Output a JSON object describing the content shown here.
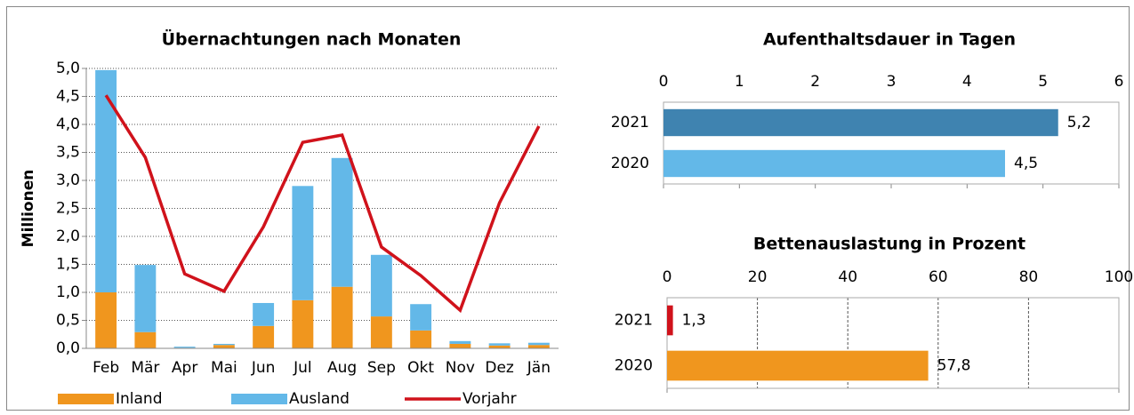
{
  "chart_data": [
    {
      "type": "bar",
      "stacked": true,
      "title": "Übernachtungen nach Monaten",
      "y_label": "Millionen",
      "categories": [
        "Feb",
        "Mär",
        "Apr",
        "Mai",
        "Jun",
        "Jul",
        "Aug",
        "Sep",
        "Okt",
        "Nov",
        "Dez",
        "Jän"
      ],
      "series": [
        {
          "name": "Inland",
          "color": "#f0961e",
          "values": [
            1.0,
            0.29,
            0.01,
            0.06,
            0.4,
            0.86,
            1.1,
            0.57,
            0.32,
            0.08,
            0.05,
            0.06
          ]
        },
        {
          "name": "Ausland",
          "color": "#63b8e8",
          "values": [
            3.97,
            1.2,
            0.02,
            0.02,
            0.41,
            2.04,
            2.3,
            1.1,
            0.47,
            0.05,
            0.04,
            0.04
          ]
        },
        {
          "name": "Vorjahr",
          "type": "line",
          "color": "#d0121b",
          "values": [
            4.52,
            3.41,
            1.33,
            1.02,
            2.17,
            3.68,
            3.81,
            1.81,
            1.3,
            0.68,
            2.6,
            3.97
          ]
        }
      ],
      "ylim": [
        0,
        5
      ],
      "yticks": [
        {
          "value": 0,
          "label": "0,0"
        },
        {
          "value": 0.5,
          "label": "0,5"
        },
        {
          "value": 1,
          "label": "1,0"
        },
        {
          "value": 1.5,
          "label": "1,5"
        },
        {
          "value": 2,
          "label": "2,0"
        },
        {
          "value": 2.5,
          "label": "2,5"
        },
        {
          "value": 3,
          "label": "3,0"
        },
        {
          "value": 3.5,
          "label": "3,5"
        },
        {
          "value": 4,
          "label": "4,0"
        },
        {
          "value": 4.5,
          "label": "4,5"
        },
        {
          "value": 5,
          "label": "5,0"
        }
      ],
      "grid": true,
      "legend": "bottom"
    },
    {
      "type": "barh",
      "title": "Aufenthaltsdauer in Tagen",
      "categories": [
        "2021",
        "2020"
      ],
      "values": [
        5.2,
        4.5
      ],
      "value_labels": [
        "5,2",
        "4,5"
      ],
      "colors": [
        "#3f83b0",
        "#63b8e8"
      ],
      "xlim": [
        0,
        6
      ],
      "xticks": [
        0,
        1,
        2,
        3,
        4,
        5,
        6
      ],
      "grid": false
    },
    {
      "type": "barh",
      "title": "Bettenauslastung in Prozent",
      "categories": [
        "2021",
        "2020"
      ],
      "values": [
        1.3,
        57.8
      ],
      "value_labels": [
        "1,3",
        "57,8"
      ],
      "colors": [
        "#d0121b",
        "#f0961e"
      ],
      "xlim": [
        0,
        100
      ],
      "xticks": [
        0,
        20,
        40,
        60,
        80,
        100
      ],
      "grid": true
    }
  ]
}
